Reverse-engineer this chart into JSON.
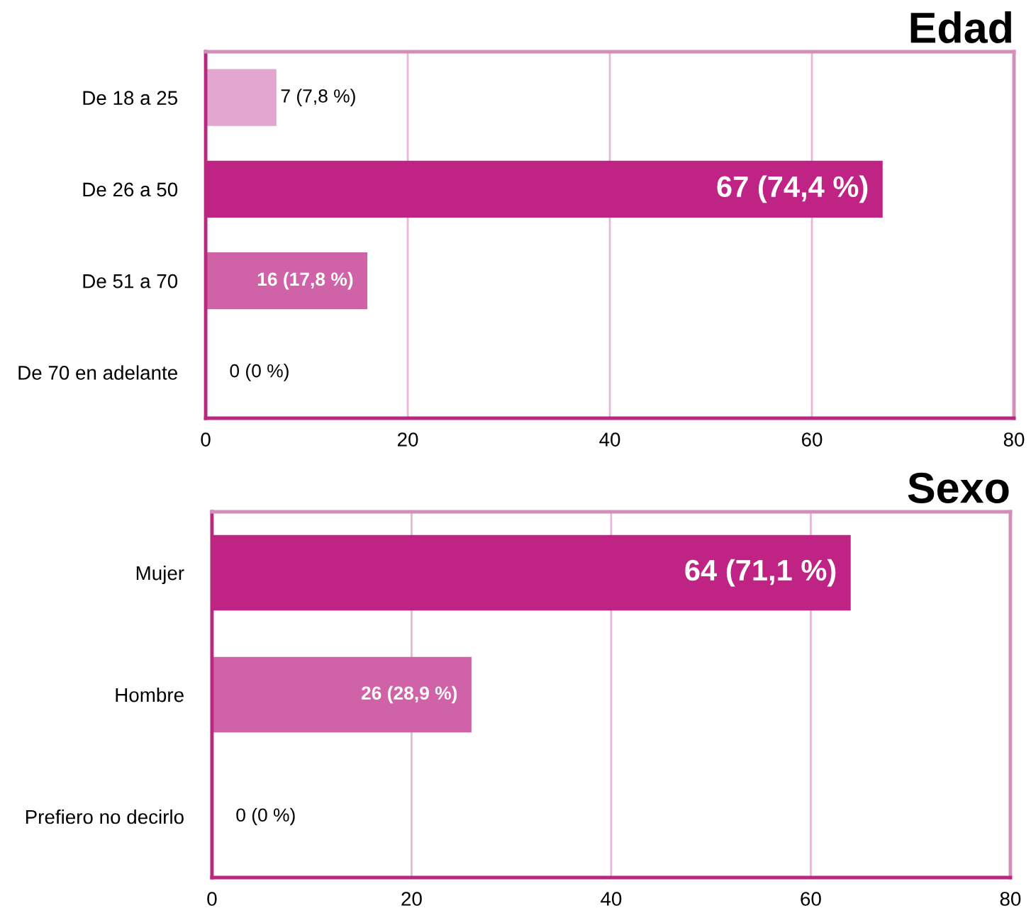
{
  "chart_data": [
    {
      "type": "bar",
      "orientation": "horizontal",
      "title": "Edad",
      "categories": [
        "De 18 a 25",
        "De 26 a 50",
        "De 51 a 70",
        "De 70 en adelante"
      ],
      "values": [
        7,
        67,
        16,
        0
      ],
      "colors": [
        "#e2a6cf",
        "#bf2383",
        "#d062a8",
        "#e2a6cf"
      ],
      "value_labels": [
        "7 (7,8 %)",
        "67 (74,4 %)",
        "16 (17,8 %)",
        "0 (0 %)"
      ],
      "xlim": [
        0,
        80
      ],
      "xticks": [
        0,
        20,
        40,
        60,
        80
      ],
      "grid": "x"
    },
    {
      "type": "bar",
      "orientation": "horizontal",
      "title": "Sexo",
      "categories": [
        "Mujer",
        "Hombre",
        "Prefiero no decirlo"
      ],
      "values": [
        64,
        26,
        0
      ],
      "colors": [
        "#bf2383",
        "#d062a8",
        "#e2a6cf"
      ],
      "value_labels": [
        "64 (71,1 %)",
        "26 (28,9 %)",
        "0 (0 %)"
      ],
      "xlim": [
        0,
        80
      ],
      "xticks": [
        0,
        20,
        40,
        60,
        80
      ],
      "grid": "x"
    }
  ]
}
